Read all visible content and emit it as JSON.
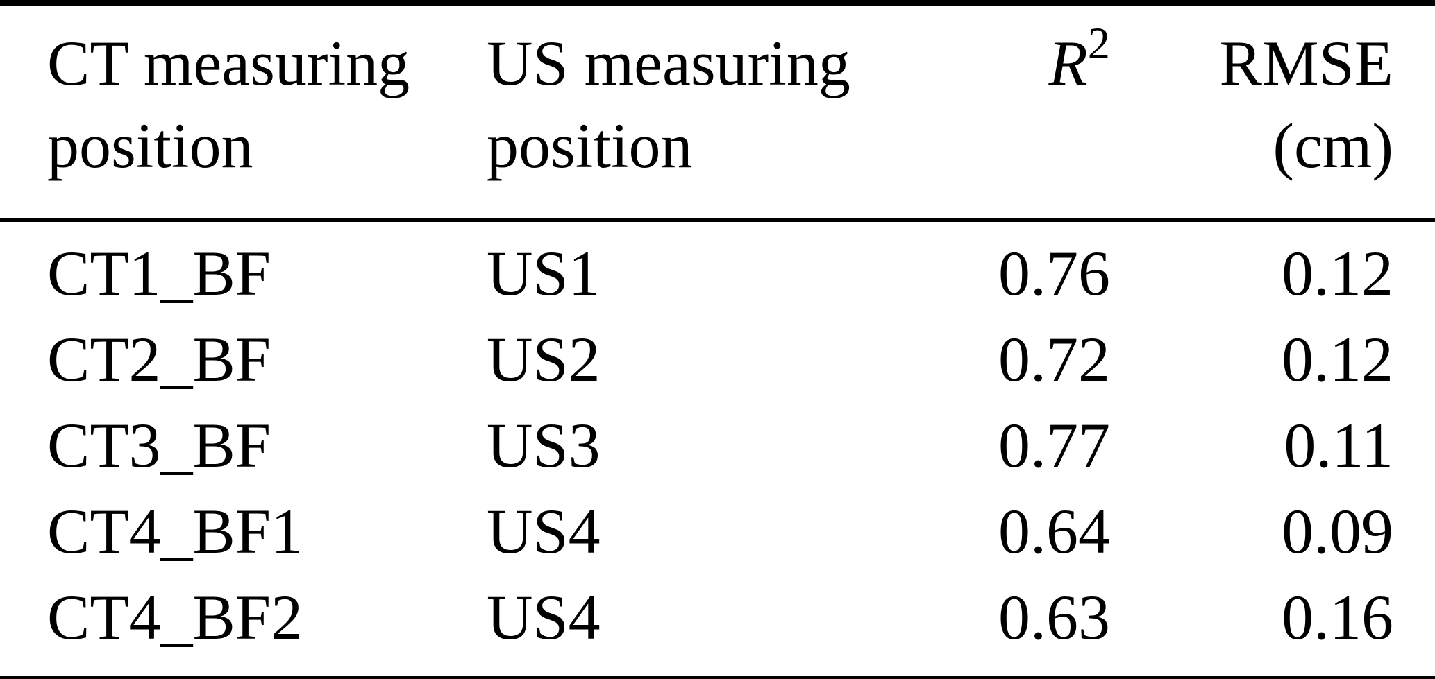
{
  "table": {
    "header": {
      "ct": {
        "line1": "CT measuring",
        "line2": "position"
      },
      "us": {
        "line1": "US measuring",
        "line2": "position"
      },
      "r2": {
        "symbol": "R",
        "superscript": "2"
      },
      "rmse": {
        "line1": "RMSE",
        "line2": "(cm)"
      }
    },
    "rows": [
      {
        "ct": "CT1_BF",
        "us": "US1",
        "r2": "0.76",
        "rmse": "0.12"
      },
      {
        "ct": "CT2_BF",
        "us": "US2",
        "r2": "0.72",
        "rmse": "0.12"
      },
      {
        "ct": "CT3_BF",
        "us": "US3",
        "r2": "0.77",
        "rmse": "0.11"
      },
      {
        "ct": "CT4_BF1",
        "us": "US4",
        "r2": "0.64",
        "rmse": "0.09"
      },
      {
        "ct": "CT4_BF2",
        "us": "US4",
        "r2": "0.63",
        "rmse": "0.16"
      }
    ]
  },
  "colors": {
    "text": "#000000",
    "background": "#ffffff",
    "rule": "#000000"
  },
  "chart_data": {
    "type": "table",
    "columns": [
      "CT measuring position",
      "US measuring position",
      "R2",
      "RMSE (cm)"
    ],
    "rows": [
      [
        "CT1_BF",
        "US1",
        0.76,
        0.12
      ],
      [
        "CT2_BF",
        "US2",
        0.72,
        0.12
      ],
      [
        "CT3_BF",
        "US3",
        0.77,
        0.11
      ],
      [
        "CT4_BF1",
        "US4",
        0.64,
        0.09
      ],
      [
        "CT4_BF2",
        "US4",
        0.63,
        0.16
      ]
    ]
  }
}
